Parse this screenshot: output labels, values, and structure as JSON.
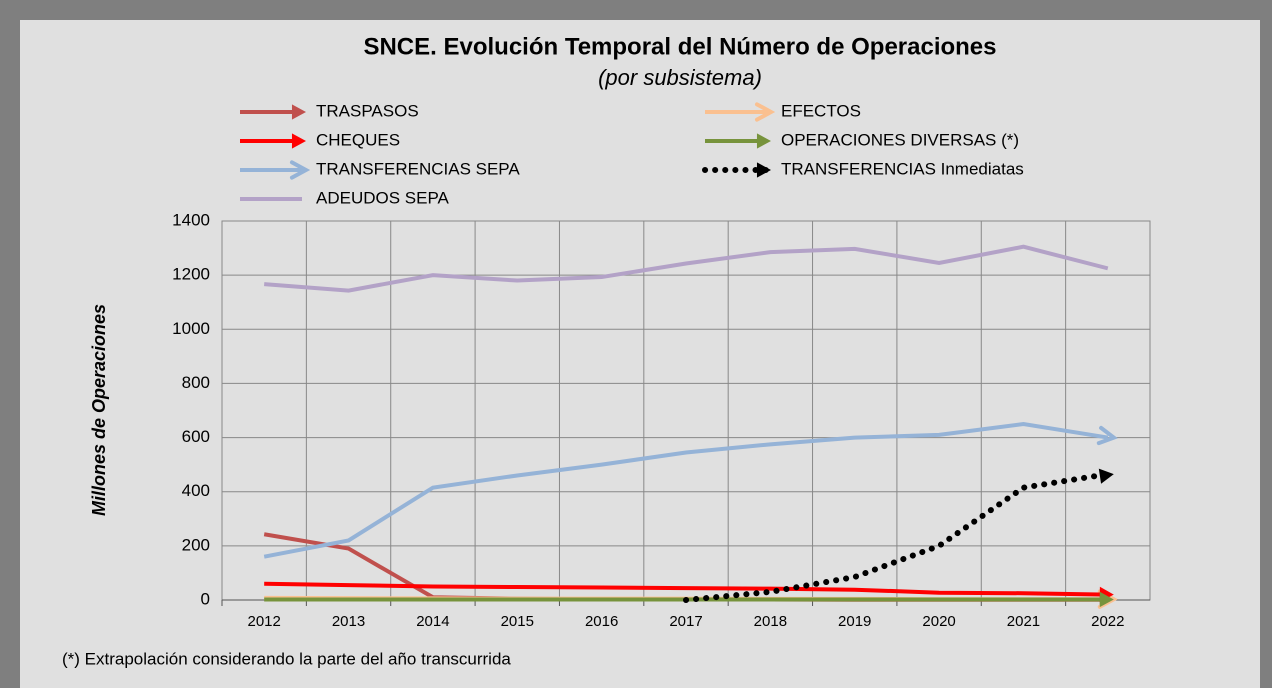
{
  "chart_data": {
    "type": "line",
    "title": "SNCE. Evolución Temporal del Número de Operaciones",
    "subtitle": "(por subsistema)",
    "y_label": "Millones de Operaciones",
    "footnote": "(*) Extrapolación considerando la parte del año transcurrida",
    "categories": [
      "2012",
      "2013",
      "2014",
      "2015",
      "2016",
      "2017",
      "2018",
      "2019",
      "2020",
      "2021",
      "2022"
    ],
    "ylim": [
      0,
      1400
    ],
    "yticks": [
      0,
      200,
      400,
      600,
      800,
      1000,
      1200,
      1400
    ],
    "grid": true,
    "legend": "top",
    "series": [
      {
        "name": "TRASPASOS",
        "color": "#c0504d",
        "end_arrow": "filled",
        "values": [
          243,
          190,
          10,
          5,
          3,
          2,
          2,
          1,
          1,
          1,
          1
        ]
      },
      {
        "name": "EFECTOS",
        "color": "#fac090",
        "end_arrow": "open",
        "values": [
          8,
          7,
          6,
          5,
          5,
          5,
          4,
          4,
          3,
          3,
          3
        ]
      },
      {
        "name": "CHEQUES",
        "color": "#ff0000",
        "end_arrow": "filled",
        "values": [
          60,
          55,
          50,
          48,
          46,
          44,
          42,
          38,
          27,
          25,
          20
        ]
      },
      {
        "name": "OPERACIONES DIVERSAS (*)",
        "color": "#77933c",
        "end_arrow": "filled",
        "values": [
          2,
          2,
          2,
          2,
          2,
          2,
          2,
          2,
          2,
          2,
          2
        ]
      },
      {
        "name": "TRANSFERENCIAS SEPA",
        "color": "#95b3d7",
        "end_arrow": "open",
        "values": [
          160,
          220,
          415,
          460,
          500,
          545,
          575,
          600,
          610,
          650,
          600
        ]
      },
      {
        "name": "TRANSFERENCIAS  Inmediatas",
        "color": "#000000",
        "style": "dotted",
        "end_arrow": "filled",
        "values": [
          null,
          null,
          null,
          null,
          null,
          0,
          30,
          85,
          200,
          415,
          465
        ]
      },
      {
        "name": "ADEUDOS SEPA",
        "color": "#b3a2c7",
        "values": [
          1167,
          1143,
          1200,
          1180,
          1193,
          1243,
          1285,
          1297,
          1245,
          1305,
          1225
        ]
      }
    ]
  }
}
